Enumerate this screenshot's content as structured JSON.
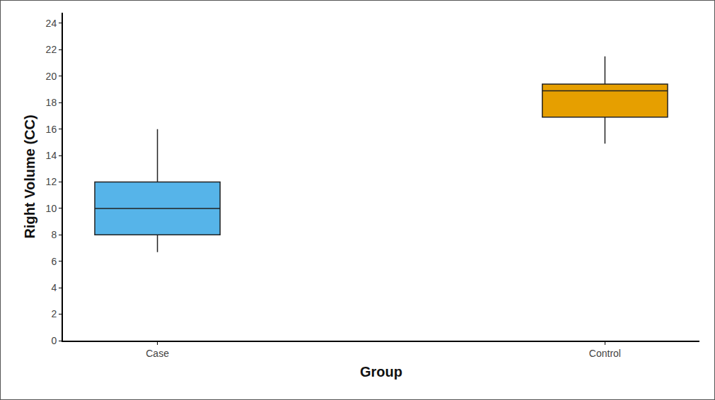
{
  "chart_data": {
    "type": "box",
    "x_label": "Group",
    "y_label": "Right Volume (CC)",
    "categories": [
      "Case",
      "Control"
    ],
    "min": [
      6.7,
      14.9
    ],
    "q1": [
      8,
      16.9
    ],
    "median": [
      10,
      18.9
    ],
    "q3": [
      12,
      19.4
    ],
    "max": [
      16,
      21.5
    ],
    "colors": [
      "#56b4e9",
      "#e69f00"
    ],
    "ylim": [
      0,
      24.8
    ],
    "yticks": [
      0,
      2,
      4,
      6,
      8,
      10,
      12,
      14,
      16,
      18,
      20,
      22,
      24
    ],
    "grid": false
  }
}
